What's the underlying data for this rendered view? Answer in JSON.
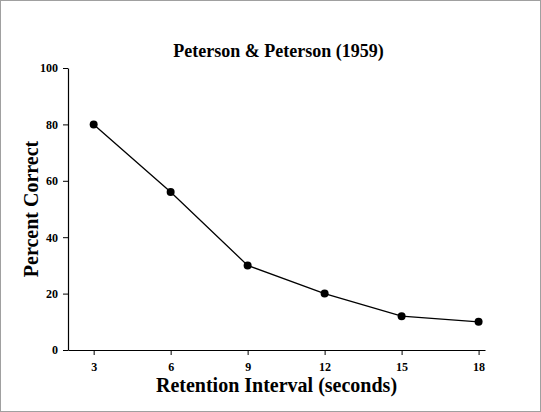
{
  "chart_data": {
    "type": "line",
    "title": "Peterson & Peterson (1959)",
    "x_label": "Retention Interval (seconds)",
    "y_label": "Percent Correct",
    "x": [
      3,
      6,
      9,
      12,
      15,
      18
    ],
    "values": [
      80,
      56,
      30,
      20,
      12,
      10
    ],
    "color": "#000000",
    "marker": "circle",
    "xlim": [
      2,
      18.25
    ],
    "xticks": [
      3,
      6,
      9,
      12,
      15,
      18
    ],
    "ylim": [
      0,
      100
    ],
    "yticks": [
      0,
      20,
      40,
      60,
      80,
      100
    ],
    "grid": false
  }
}
